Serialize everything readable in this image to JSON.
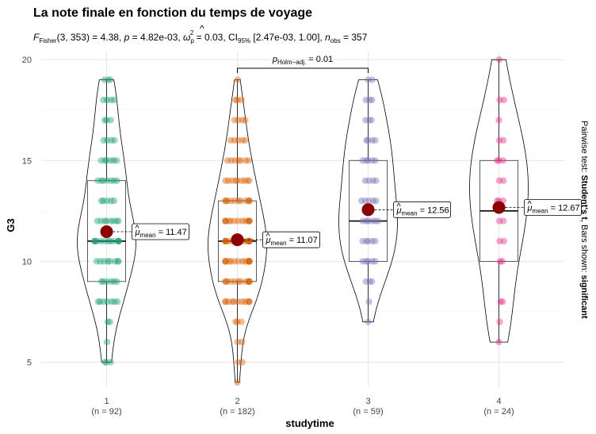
{
  "chart_data": {
    "type": "violin-box-scatter",
    "title": "La note finale en fonction du temps de voyage",
    "subtitle": {
      "fisher_label": "F",
      "fisher_sub": "Fisher",
      "fisher_args": "(3, 353) = 4.38, ",
      "p_text": "p",
      "p_value": " = 4.82e-03, ",
      "omega_text": "ω",
      "omega_hat": "^",
      "omega_sub": "p",
      "omega_sup": "2",
      "omega_value": " = 0.03, CI",
      "ci_sub": "95%",
      "ci_value": " [2.47e-03, 1.00], ",
      "n_text": "n",
      "n_sub": "obs",
      "n_value": " = 357"
    },
    "xlabel": "studytime",
    "ylabel": "G3",
    "ylim": [
      3.8,
      20.4
    ],
    "yticks": [
      5,
      10,
      15,
      20
    ],
    "grid": true,
    "caption": {
      "prefix": "Pairwise test: ",
      "bold1": "Student's t",
      "middle": ", Bars shown: ",
      "bold2": "significant"
    },
    "pairwise": {
      "from": "2",
      "to": "3",
      "label_main": "p",
      "label_sub": "Holm−adj.",
      "label_value": " = 0.01"
    },
    "groups": [
      {
        "category": "1",
        "n_label": "(n = 92)",
        "color": "#1B9E77",
        "mean": 11.47,
        "mean_label_sub": "mean",
        "mean_label_value": " = 11.47",
        "q1": 9,
        "median": 11,
        "q3": 14,
        "whisker_low": 5,
        "whisker_high": 19,
        "points": [
          5,
          5,
          5,
          6,
          7,
          7,
          8,
          8,
          8,
          8,
          8,
          8,
          8,
          9,
          9,
          9,
          9,
          9,
          9,
          10,
          10,
          10,
          10,
          10,
          10,
          10,
          10,
          11,
          11,
          11,
          11,
          11,
          11,
          11,
          11,
          11,
          11,
          11,
          11,
          11,
          12,
          12,
          12,
          12,
          12,
          12,
          12,
          12,
          13,
          13,
          13,
          13,
          13,
          14,
          14,
          14,
          14,
          14,
          14,
          14,
          15,
          15,
          15,
          15,
          15,
          15,
          16,
          16,
          16,
          16,
          17,
          17,
          17,
          18,
          18,
          18,
          18,
          19,
          19,
          19
        ]
      },
      {
        "category": "2",
        "n_label": "(n = 182)",
        "color": "#D95F02",
        "mean": 11.07,
        "mean_label_sub": "mean",
        "mean_label_value": " = 11.07",
        "q1": 9,
        "median": 11,
        "q3": 13,
        "whisker_low": 4,
        "whisker_high": 19,
        "points": [
          4,
          5,
          5,
          6,
          6,
          7,
          7,
          7,
          8,
          8,
          8,
          8,
          8,
          8,
          8,
          8,
          8,
          8,
          8,
          9,
          9,
          9,
          9,
          9,
          9,
          9,
          9,
          9,
          9,
          9,
          9,
          10,
          10,
          10,
          10,
          10,
          10,
          10,
          10,
          10,
          10,
          10,
          10,
          10,
          10,
          11,
          11,
          11,
          11,
          11,
          11,
          11,
          11,
          11,
          11,
          11,
          11,
          11,
          11,
          11,
          11,
          12,
          12,
          12,
          12,
          12,
          12,
          12,
          12,
          12,
          12,
          12,
          12,
          12,
          13,
          13,
          13,
          13,
          13,
          13,
          13,
          13,
          13,
          13,
          13,
          14,
          14,
          14,
          14,
          14,
          14,
          14,
          14,
          14,
          15,
          15,
          15,
          15,
          15,
          15,
          15,
          16,
          16,
          16,
          16,
          16,
          17,
          17,
          17,
          17,
          18,
          18,
          18,
          19
        ]
      },
      {
        "category": "3",
        "n_label": "(n = 59)",
        "color": "#7570B3",
        "mean": 12.56,
        "mean_label_sub": "mean",
        "mean_label_value": " = 12.56",
        "q1": 10,
        "median": 12,
        "q3": 15,
        "whisker_low": 7,
        "whisker_high": 19,
        "points": [
          7,
          8,
          9,
          9,
          9,
          10,
          10,
          10,
          10,
          10,
          11,
          11,
          11,
          11,
          11,
          12,
          12,
          12,
          12,
          12,
          12,
          13,
          13,
          13,
          13,
          13,
          14,
          14,
          14,
          14,
          15,
          15,
          15,
          15,
          15,
          16,
          16,
          16,
          16,
          17,
          17,
          17,
          18,
          18,
          18,
          19,
          19
        ]
      },
      {
        "category": "4",
        "n_label": "(n = 24)",
        "color": "#E7298A",
        "mean": 12.67,
        "mean_label_sub": "mean",
        "mean_label_value": " = 12.67",
        "q1": 10,
        "median": 12.5,
        "q3": 15,
        "whisker_low": 6,
        "whisker_high": 20,
        "points": [
          6,
          7,
          8,
          8,
          10,
          10,
          11,
          11,
          12,
          12,
          13,
          13,
          13,
          14,
          14,
          15,
          15,
          15,
          16,
          16,
          17,
          18,
          18,
          20
        ]
      }
    ]
  }
}
